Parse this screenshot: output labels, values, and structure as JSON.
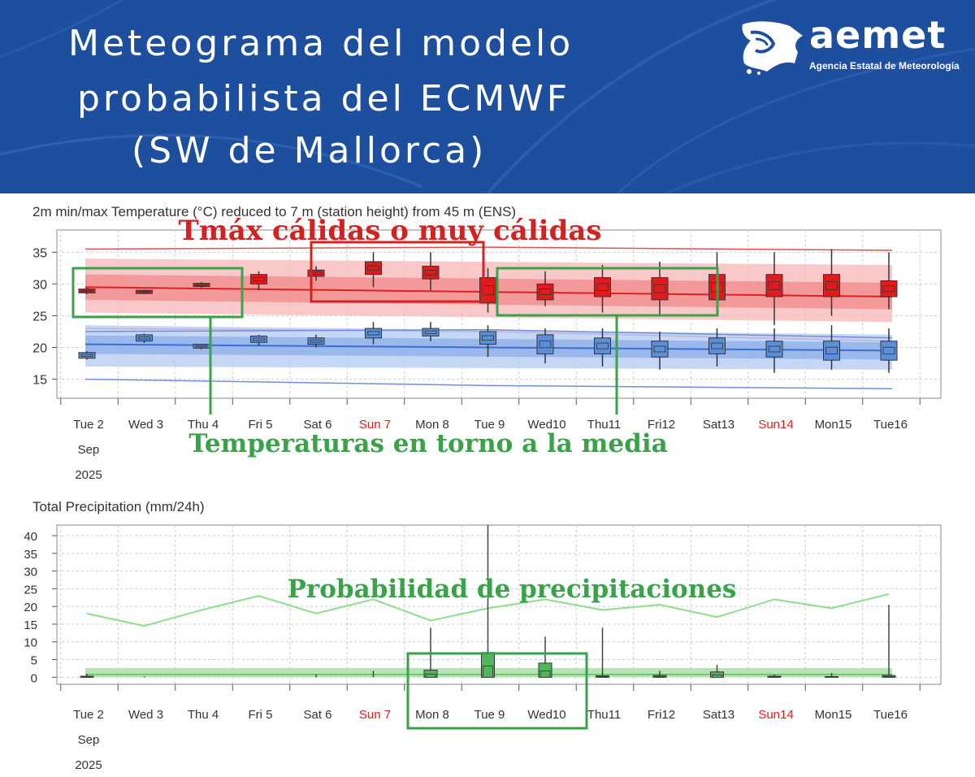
{
  "header": {
    "title_lines": [
      "Meteograma del modelo",
      "probabilista del ECMWF",
      "(SW de Mallorca)"
    ],
    "logo": {
      "word": "aemet",
      "subtitle": "Agencia Estatal de Meteorología"
    },
    "background": "#1d4f9e"
  },
  "days": [
    {
      "label": "Tue 2",
      "weekend": false
    },
    {
      "label": "Wed 3",
      "weekend": false
    },
    {
      "label": "Thu 4",
      "weekend": false
    },
    {
      "label": "Fri 5",
      "weekend": false
    },
    {
      "label": "Sat 6",
      "weekend": false
    },
    {
      "label": "Sun 7",
      "weekend": true
    },
    {
      "label": "Mon 8",
      "weekend": false
    },
    {
      "label": "Tue 9",
      "weekend": false
    },
    {
      "label": "Wed10",
      "weekend": false
    },
    {
      "label": "Thu11",
      "weekend": false
    },
    {
      "label": "Fri12",
      "weekend": false
    },
    {
      "label": "Sat13",
      "weekend": false
    },
    {
      "label": "Sun14",
      "weekend": true
    },
    {
      "label": "Mon15",
      "weekend": false
    },
    {
      "label": "Tue16",
      "weekend": false
    }
  ],
  "date_sub": [
    "Sep",
    "2025"
  ],
  "chart_data": [
    {
      "type": "box",
      "title": "2m min/max Temperature (°C) reduced to 7 m (station height) from 45 m (ENS)",
      "yticks": [
        15,
        20,
        25,
        30,
        35
      ],
      "ylim": [
        12,
        38.5
      ],
      "max_boxes": [
        {
          "day": "Tue 2",
          "q1": 28.6,
          "q3": 29.2,
          "lo": 28.4,
          "hi": 29.4
        },
        {
          "day": "Wed 3",
          "q1": 28.5,
          "q3": 29.0,
          "lo": 28.4,
          "hi": 29.1
        },
        {
          "day": "Thu 4",
          "q1": 29.6,
          "q3": 30.1,
          "lo": 29.4,
          "hi": 30.3
        },
        {
          "day": "Fri 5",
          "q1": 30.0,
          "q3": 31.5,
          "lo": 29.0,
          "hi": 32.0
        },
        {
          "day": "Sat 6",
          "q1": 31.2,
          "q3": 32.2,
          "lo": 30.5,
          "hi": 32.8
        },
        {
          "day": "Sun 7",
          "q1": 31.5,
          "q3": 33.5,
          "lo": 29.5,
          "hi": 35.0
        },
        {
          "day": "Mon 8",
          "q1": 30.8,
          "q3": 32.8,
          "lo": 29.0,
          "hi": 35.0
        },
        {
          "day": "Tue 9",
          "q1": 27.0,
          "q3": 31.0,
          "lo": 25.5,
          "hi": 32.5
        },
        {
          "day": "Wed10",
          "q1": 27.5,
          "q3": 30.0,
          "lo": 26.5,
          "hi": 32.0
        },
        {
          "day": "Thu11",
          "q1": 28.0,
          "q3": 31.0,
          "lo": 25.5,
          "hi": 33.0
        },
        {
          "day": "Fri12",
          "q1": 27.5,
          "q3": 31.0,
          "lo": 25.0,
          "hi": 33.5
        },
        {
          "day": "Sat13",
          "q1": 27.5,
          "q3": 31.5,
          "lo": 25.0,
          "hi": 35.0
        },
        {
          "day": "Sun14",
          "q1": 28.0,
          "q3": 31.5,
          "lo": 23.5,
          "hi": 35.0
        },
        {
          "day": "Mon15",
          "q1": 28.0,
          "q3": 31.5,
          "lo": 25.0,
          "hi": 35.5
        },
        {
          "day": "Tue16",
          "q1": 28.0,
          "q3": 30.5,
          "lo": 26.0,
          "hi": 35.0
        }
      ],
      "min_boxes": [
        {
          "day": "Tue 2",
          "q1": 18.3,
          "q3": 19.2,
          "lo": 18.1,
          "hi": 19.4
        },
        {
          "day": "Wed 3",
          "q1": 21.0,
          "q3": 22.0,
          "lo": 20.7,
          "hi": 22.2
        },
        {
          "day": "Thu 4",
          "q1": 19.9,
          "q3": 20.5,
          "lo": 19.7,
          "hi": 20.6
        },
        {
          "day": "Fri 5",
          "q1": 20.8,
          "q3": 21.8,
          "lo": 20.3,
          "hi": 22.0
        },
        {
          "day": "Sat 6",
          "q1": 20.5,
          "q3": 21.5,
          "lo": 20.0,
          "hi": 22.0
        },
        {
          "day": "Sun 7",
          "q1": 21.5,
          "q3": 23.0,
          "lo": 20.5,
          "hi": 24.0
        },
        {
          "day": "Mon 8",
          "q1": 21.8,
          "q3": 23.0,
          "lo": 21.0,
          "hi": 24.0
        },
        {
          "day": "Tue 9",
          "q1": 20.5,
          "q3": 22.5,
          "lo": 18.5,
          "hi": 23.5
        },
        {
          "day": "Wed10",
          "q1": 19.0,
          "q3": 22.0,
          "lo": 17.5,
          "hi": 23.0
        },
        {
          "day": "Thu11",
          "q1": 19.0,
          "q3": 21.5,
          "lo": 17.0,
          "hi": 23.0
        },
        {
          "day": "Fri12",
          "q1": 18.5,
          "q3": 21.0,
          "lo": 16.5,
          "hi": 22.5
        },
        {
          "day": "Sat13",
          "q1": 19.0,
          "q3": 21.5,
          "lo": 17.0,
          "hi": 23.0
        },
        {
          "day": "Sun14",
          "q1": 18.5,
          "q3": 21.0,
          "lo": 16.0,
          "hi": 23.0
        },
        {
          "day": "Mon15",
          "q1": 18.0,
          "q3": 21.0,
          "lo": 16.5,
          "hi": 23.5
        },
        {
          "day": "Tue16",
          "q1": 18.0,
          "q3": 21.0,
          "lo": 16.0,
          "hi": 23.0
        }
      ],
      "climate": {
        "max_mean": [
          29.5,
          28.0
        ],
        "max_line_upper": [
          35.5,
          35.8,
          35.3
        ],
        "max_line_lower": [
          23.0,
          22.5,
          21.0
        ],
        "min_mean": [
          20.5,
          19.5
        ],
        "min_line_upper": [
          22.5,
          22.8,
          21.5
        ],
        "min_line_lower": [
          15.0,
          14.0,
          13.5
        ]
      }
    },
    {
      "type": "box",
      "title": "Total Precipitation (mm/24h)",
      "yticks": [
        0,
        5,
        10,
        15,
        20,
        25,
        30,
        35,
        40
      ],
      "ylim": [
        -2,
        43
      ],
      "boxes": [
        {
          "day": "Tue 2",
          "q3": 0.3,
          "hi": 1.0
        },
        {
          "day": "Wed 3",
          "q3": 0,
          "hi": 0.3
        },
        {
          "day": "Thu 4",
          "q3": 0,
          "hi": 0
        },
        {
          "day": "Fri 5",
          "q3": 0,
          "hi": 0
        },
        {
          "day": "Sat 6",
          "q3": 0,
          "hi": 0.8
        },
        {
          "day": "Sun 7",
          "q3": 0,
          "hi": 1.8
        },
        {
          "day": "Mon 8",
          "q3": 2.0,
          "hi": 14.0
        },
        {
          "day": "Tue 9",
          "q3": 7.0,
          "hi": 43.0
        },
        {
          "day": "Wed10",
          "q3": 4.0,
          "hi": 11.5
        },
        {
          "day": "Thu11",
          "q3": 0.4,
          "hi": 14.0
        },
        {
          "day": "Fri12",
          "q3": 0.5,
          "hi": 1.8
        },
        {
          "day": "Sat13",
          "q3": 1.5,
          "hi": 3.5
        },
        {
          "day": "Sun14",
          "q3": 0.3,
          "hi": 0.8
        },
        {
          "day": "Mon15",
          "q3": 0.2,
          "hi": 1.2
        },
        {
          "day": "Tue16",
          "q3": 0.5,
          "hi": 20.5
        }
      ],
      "climate_line": [
        18,
        14.5,
        19,
        23,
        18,
        22,
        16,
        19.5,
        22,
        19,
        20.5,
        17,
        22,
        19.5,
        23.5
      ]
    }
  ],
  "annotations": {
    "tmax": "Tmáx cálidas o muy cálidas",
    "media": "Temperaturas en torno a la media",
    "prob": "Probabilidad de precipitaciones"
  },
  "colors": {
    "red_box": "#e31a1c",
    "blue_box": "#5b8fd6",
    "red_annot": "#d42222",
    "green_annot": "#3aa34a",
    "precip_green": "#4fb65a"
  }
}
